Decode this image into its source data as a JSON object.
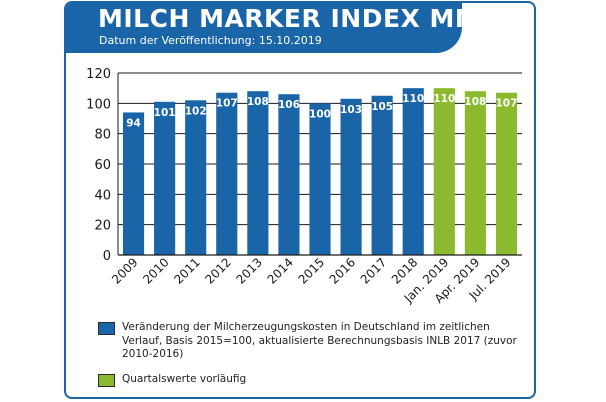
{
  "header": {
    "title": "MILCH MARKER INDEX MMI",
    "subtitle": "Datum der Veröffentlichung: 15.10.2019"
  },
  "colors": {
    "brand": "#1a64a8",
    "bar_blue": "#1a64a8",
    "bar_green": "#8cba2e"
  },
  "chart_data": {
    "type": "bar",
    "categories": [
      "2009",
      "2010",
      "2011",
      "2012",
      "2013",
      "2014",
      "2015",
      "2016",
      "2017",
      "2018",
      "Jan. 2019",
      "Apr. 2019",
      "Jul. 2019"
    ],
    "series": [
      {
        "name": "Veränderung der Milcherzeugungskosten in Deutschland im zeitlichen Verlauf, Basis 2015=100, aktualisierte Berechnungsbasis INLB 2017 (zuvor 2010-2016)",
        "values": [
          94,
          101,
          102,
          107,
          108,
          106,
          100,
          103,
          105,
          110,
          null,
          null,
          null
        ],
        "color": "#1a64a8"
      },
      {
        "name": "Quartalswerte vorläufig",
        "values": [
          null,
          null,
          null,
          null,
          null,
          null,
          null,
          null,
          null,
          null,
          110,
          108,
          107
        ],
        "color": "#8cba2e"
      }
    ],
    "data_labels": [
      "94",
      "101",
      "102",
      "107",
      "108",
      "106",
      "100",
      "103",
      "105",
      "110",
      "110",
      "108",
      "107"
    ],
    "ylim": [
      0,
      120
    ],
    "yticks": [
      0,
      20,
      40,
      60,
      80,
      100,
      120
    ],
    "ytick_labels": [
      "0",
      "20",
      "40",
      "60",
      "80",
      "100",
      "120"
    ],
    "grid": true,
    "legend_position": "bottom"
  },
  "legend": [
    {
      "text": "Veränderung der Milcherzeugungskosten in Deutschland im zeitlichen Verlauf, Basis 2015=100, aktualisierte Berechnungsbasis INLB 2017 (zuvor 2010-2016)",
      "color": "#1a64a8"
    },
    {
      "text": "Quartalswerte vorläufig",
      "color": "#8cba2e"
    }
  ]
}
